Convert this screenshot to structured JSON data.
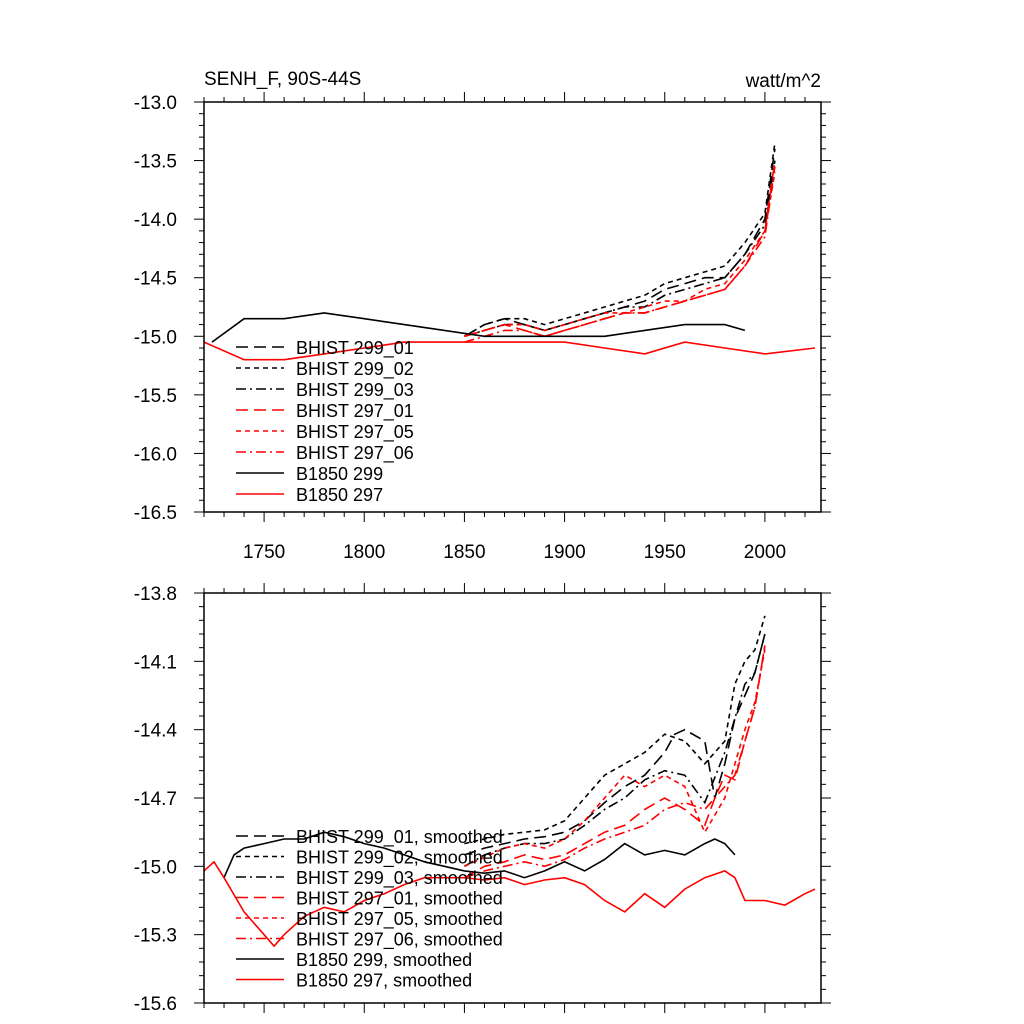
{
  "chart_data": [
    {
      "type": "line",
      "title": "SENH_F, 90S-44S",
      "units": "watt/m^2",
      "xlim": [
        1720,
        2028
      ],
      "ylim": [
        -16.5,
        -13.0
      ],
      "x_ticks": [
        1750,
        1800,
        1850,
        1900,
        1950,
        2000
      ],
      "x_tick_labels": [
        "1750",
        "1800",
        "1850",
        "1900",
        "1950",
        "2000"
      ],
      "y_ticks": [
        -13.0,
        -13.5,
        -14.0,
        -14.5,
        -15.0,
        -15.5,
        -16.0,
        -16.5
      ],
      "y_tick_labels": [
        "-13.0",
        "-13.5",
        "-14.0",
        "-14.5",
        "-15.0",
        "-15.5",
        "-16.0",
        "-16.5"
      ],
      "legend_position": "lower-left",
      "legend": [
        {
          "label": "BHIST 299_01",
          "color": "#000000",
          "dash": "long-dash"
        },
        {
          "label": "BHIST 299_02",
          "color": "#000000",
          "dash": "short-dash"
        },
        {
          "label": "BHIST 299_03",
          "color": "#000000",
          "dash": "dash-dot"
        },
        {
          "label": "BHIST 297_01",
          "color": "#ff0000",
          "dash": "long-dash"
        },
        {
          "label": "BHIST 297_05",
          "color": "#ff0000",
          "dash": "short-dash"
        },
        {
          "label": "BHIST 297_06",
          "color": "#ff0000",
          "dash": "dash-dot"
        },
        {
          "label": "B1850 299",
          "color": "#000000",
          "dash": "solid"
        },
        {
          "label": "B1850 297",
          "color": "#ff0000",
          "dash": "solid"
        }
      ],
      "series": [
        {
          "name": "BHIST 299_01",
          "color": "#000000",
          "dash": "long-dash",
          "x": [
            1850,
            1860,
            1870,
            1880,
            1890,
            1900,
            1910,
            1920,
            1930,
            1940,
            1950,
            1960,
            1970,
            1980,
            1990,
            2000,
            2005
          ],
          "y": [
            -15.0,
            -14.9,
            -14.85,
            -14.9,
            -14.95,
            -14.9,
            -14.85,
            -14.8,
            -14.75,
            -14.7,
            -14.6,
            -14.55,
            -14.5,
            -14.5,
            -14.3,
            -14.0,
            -13.4
          ]
        },
        {
          "name": "BHIST 299_02",
          "color": "#000000",
          "dash": "short-dash",
          "x": [
            1850,
            1860,
            1870,
            1880,
            1890,
            1900,
            1910,
            1920,
            1930,
            1940,
            1950,
            1960,
            1970,
            1980,
            1990,
            2000,
            2005
          ],
          "y": [
            -15.0,
            -14.9,
            -14.85,
            -14.85,
            -14.9,
            -14.85,
            -14.8,
            -14.75,
            -14.7,
            -14.65,
            -14.55,
            -14.5,
            -14.45,
            -14.4,
            -14.2,
            -13.95,
            -13.35
          ]
        },
        {
          "name": "BHIST 299_03",
          "color": "#000000",
          "dash": "dash-dot",
          "x": [
            1850,
            1860,
            1870,
            1880,
            1890,
            1900,
            1910,
            1920,
            1930,
            1940,
            1950,
            1960,
            1970,
            1980,
            1990,
            2000,
            2005
          ],
          "y": [
            -15.0,
            -14.95,
            -14.9,
            -14.9,
            -14.95,
            -14.9,
            -14.85,
            -14.8,
            -14.75,
            -14.75,
            -14.65,
            -14.6,
            -14.55,
            -14.5,
            -14.3,
            -14.05,
            -13.5
          ]
        },
        {
          "name": "BHIST 297_01",
          "color": "#ff0000",
          "dash": "long-dash",
          "x": [
            1850,
            1860,
            1870,
            1880,
            1890,
            1900,
            1910,
            1920,
            1930,
            1940,
            1950,
            1960,
            1970,
            1980,
            1990,
            2000,
            2005
          ],
          "y": [
            -15.0,
            -14.95,
            -14.9,
            -14.95,
            -15.0,
            -14.95,
            -14.9,
            -14.85,
            -14.8,
            -14.8,
            -14.75,
            -14.7,
            -14.65,
            -14.6,
            -14.4,
            -14.1,
            -13.5
          ]
        },
        {
          "name": "BHIST 297_05",
          "color": "#ff0000",
          "dash": "short-dash",
          "x": [
            1850,
            1860,
            1870,
            1880,
            1890,
            1900,
            1910,
            1920,
            1930,
            1940,
            1950,
            1960,
            1970,
            1980,
            1990,
            2000,
            2005
          ],
          "y": [
            -15.0,
            -14.95,
            -14.9,
            -14.9,
            -14.95,
            -14.9,
            -14.85,
            -14.8,
            -14.8,
            -14.75,
            -14.7,
            -14.7,
            -14.6,
            -14.55,
            -14.35,
            -14.1,
            -13.6
          ]
        },
        {
          "name": "BHIST 297_06",
          "color": "#ff0000",
          "dash": "dash-dot",
          "x": [
            1850,
            1860,
            1870,
            1880,
            1890,
            1900,
            1910,
            1920,
            1930,
            1940,
            1950,
            1960,
            1970,
            1980,
            1990,
            2000,
            2005
          ],
          "y": [
            -15.05,
            -15.0,
            -14.95,
            -14.95,
            -15.0,
            -14.95,
            -14.9,
            -14.85,
            -14.8,
            -14.8,
            -14.75,
            -14.7,
            -14.65,
            -14.6,
            -14.4,
            -14.15,
            -13.55
          ]
        },
        {
          "name": "B1850 299",
          "color": "#000000",
          "dash": "solid",
          "x": [
            1724,
            1740,
            1760,
            1780,
            1800,
            1820,
            1840,
            1860,
            1880,
            1900,
            1920,
            1940,
            1960,
            1980,
            1990
          ],
          "y": [
            -15.05,
            -14.85,
            -14.85,
            -14.8,
            -14.85,
            -14.9,
            -14.95,
            -15.0,
            -15.0,
            -15.0,
            -15.0,
            -14.95,
            -14.9,
            -14.9,
            -14.95
          ]
        },
        {
          "name": "B1850 297",
          "color": "#ff0000",
          "dash": "solid",
          "x": [
            1720,
            1740,
            1760,
            1780,
            1800,
            1820,
            1840,
            1860,
            1880,
            1900,
            1920,
            1940,
            1960,
            1980,
            2000,
            2025
          ],
          "y": [
            -15.05,
            -15.2,
            -15.2,
            -15.15,
            -15.1,
            -15.05,
            -15.05,
            -15.05,
            -15.05,
            -15.05,
            -15.1,
            -15.15,
            -15.05,
            -15.1,
            -15.15,
            -15.1
          ]
        }
      ]
    },
    {
      "type": "line",
      "title": "",
      "xlim": [
        1720,
        2028
      ],
      "ylim": [
        -15.6,
        -13.8
      ],
      "x_ticks": [
        1750,
        1800,
        1850,
        1900,
        1950,
        2000
      ],
      "x_tick_labels": [
        "",
        "",
        "",
        "",
        "",
        ""
      ],
      "y_ticks": [
        -13.8,
        -14.1,
        -14.4,
        -14.7,
        -15.0,
        -15.3,
        -15.6
      ],
      "y_tick_labels": [
        "-13.8",
        "-14.1",
        "-14.4",
        "-14.7",
        "-15.0",
        "-15.3",
        "-15.6"
      ],
      "legend_position": "lower-left",
      "legend": [
        {
          "label": "BHIST 299_01, smoothed",
          "color": "#000000",
          "dash": "long-dash"
        },
        {
          "label": "BHIST 299_02, smoothed",
          "color": "#000000",
          "dash": "short-dash"
        },
        {
          "label": "BHIST 299_03, smoothed",
          "color": "#000000",
          "dash": "dash-dot"
        },
        {
          "label": "BHIST 297_01, smoothed",
          "color": "#ff0000",
          "dash": "long-dash"
        },
        {
          "label": "BHIST 297_05, smoothed",
          "color": "#ff0000",
          "dash": "short-dash"
        },
        {
          "label": "BHIST 297_06, smoothed",
          "color": "#ff0000",
          "dash": "dash-dot"
        },
        {
          "label": "B1850 299, smoothed",
          "color": "#000000",
          "dash": "solid"
        },
        {
          "label": "B1850 297, smoothed",
          "color": "#ff0000",
          "dash": "solid"
        }
      ],
      "series": [
        {
          "name": "BHIST 299_01, smoothed",
          "color": "#000000",
          "dash": "long-dash",
          "x": [
            1850,
            1860,
            1870,
            1880,
            1890,
            1900,
            1910,
            1920,
            1930,
            1940,
            1950,
            1955,
            1960,
            1970,
            1975,
            1980,
            1985,
            1990,
            1995,
            2000
          ],
          "y": [
            -14.95,
            -14.92,
            -14.9,
            -14.88,
            -14.87,
            -14.85,
            -14.8,
            -14.72,
            -14.65,
            -14.6,
            -14.5,
            -14.42,
            -14.4,
            -14.45,
            -14.7,
            -14.55,
            -14.35,
            -14.25,
            -14.15,
            -13.98
          ]
        },
        {
          "name": "BHIST 299_02, smoothed",
          "color": "#000000",
          "dash": "short-dash",
          "x": [
            1850,
            1860,
            1870,
            1880,
            1890,
            1900,
            1910,
            1920,
            1930,
            1940,
            1950,
            1960,
            1970,
            1980,
            1985,
            1990,
            1995,
            2000
          ],
          "y": [
            -14.9,
            -14.88,
            -14.86,
            -14.85,
            -14.84,
            -14.8,
            -14.7,
            -14.6,
            -14.55,
            -14.5,
            -14.42,
            -14.45,
            -14.55,
            -14.45,
            -14.2,
            -14.1,
            -14.05,
            -13.9
          ]
        },
        {
          "name": "BHIST 299_03, smoothed",
          "color": "#000000",
          "dash": "dash-dot",
          "x": [
            1850,
            1860,
            1870,
            1880,
            1890,
            1900,
            1910,
            1920,
            1930,
            1940,
            1950,
            1960,
            1970,
            1980,
            1985,
            1990,
            1995,
            2000
          ],
          "y": [
            -15.0,
            -14.95,
            -14.92,
            -14.9,
            -14.9,
            -14.88,
            -14.82,
            -14.75,
            -14.7,
            -14.62,
            -14.58,
            -14.6,
            -14.72,
            -14.5,
            -14.35,
            -14.2,
            -14.15,
            -13.98
          ]
        },
        {
          "name": "BHIST 297_01, smoothed",
          "color": "#ff0000",
          "dash": "long-dash",
          "x": [
            1850,
            1860,
            1870,
            1880,
            1890,
            1900,
            1910,
            1920,
            1930,
            1940,
            1950,
            1960,
            1970,
            1975,
            1980,
            1985,
            1990,
            1995,
            2000
          ],
          "y": [
            -15.05,
            -15.0,
            -14.98,
            -14.95,
            -14.97,
            -14.95,
            -14.9,
            -14.85,
            -14.82,
            -14.75,
            -14.7,
            -14.75,
            -14.82,
            -14.7,
            -14.6,
            -14.62,
            -14.45,
            -14.3,
            -14.03
          ]
        },
        {
          "name": "BHIST 297_05, smoothed",
          "color": "#ff0000",
          "dash": "short-dash",
          "x": [
            1850,
            1860,
            1870,
            1880,
            1890,
            1900,
            1910,
            1920,
            1930,
            1940,
            1950,
            1960,
            1970,
            1980,
            1985,
            1990,
            1995,
            2000
          ],
          "y": [
            -15.0,
            -14.96,
            -14.92,
            -14.9,
            -14.92,
            -14.88,
            -14.8,
            -14.7,
            -14.6,
            -14.65,
            -14.6,
            -14.65,
            -14.85,
            -14.7,
            -14.55,
            -14.4,
            -14.28,
            -14.05
          ]
        },
        {
          "name": "BHIST 297_06, smoothed",
          "color": "#ff0000",
          "dash": "dash-dot",
          "x": [
            1850,
            1860,
            1870,
            1880,
            1890,
            1900,
            1910,
            1920,
            1930,
            1940,
            1950,
            1960,
            1970,
            1980,
            1985,
            1990,
            1995,
            2000
          ],
          "y": [
            -15.05,
            -15.02,
            -15.0,
            -14.98,
            -15.0,
            -14.97,
            -14.92,
            -14.88,
            -14.85,
            -14.82,
            -14.75,
            -14.72,
            -14.75,
            -14.65,
            -14.6,
            -14.45,
            -14.3,
            -14.03
          ]
        },
        {
          "name": "B1850 299, smoothed",
          "color": "#000000",
          "dash": "solid",
          "x": [
            1730,
            1735,
            1740,
            1750,
            1760,
            1770,
            1780,
            1790,
            1800,
            1810,
            1820,
            1830,
            1840,
            1850,
            1860,
            1870,
            1880,
            1890,
            1900,
            1910,
            1920,
            1930,
            1940,
            1950,
            1960,
            1970,
            1975,
            1980,
            1985
          ],
          "y": [
            -15.05,
            -14.95,
            -14.92,
            -14.9,
            -14.88,
            -14.88,
            -14.85,
            -14.87,
            -14.9,
            -14.92,
            -14.95,
            -14.98,
            -15.0,
            -15.02,
            -15.03,
            -15.02,
            -15.05,
            -15.02,
            -14.98,
            -15.02,
            -14.97,
            -14.9,
            -14.95,
            -14.93,
            -14.95,
            -14.9,
            -14.88,
            -14.9,
            -14.95
          ]
        },
        {
          "name": "B1850 297, smoothed",
          "color": "#ff0000",
          "dash": "solid",
          "x": [
            1720,
            1725,
            1730,
            1740,
            1750,
            1755,
            1760,
            1770,
            1780,
            1790,
            1800,
            1810,
            1820,
            1830,
            1840,
            1850,
            1860,
            1870,
            1880,
            1890,
            1900,
            1910,
            1920,
            1930,
            1940,
            1950,
            1960,
            1970,
            1980,
            1985,
            1990,
            2000,
            2010,
            2020,
            2025
          ],
          "y": [
            -15.02,
            -14.98,
            -15.05,
            -15.2,
            -15.3,
            -15.35,
            -15.3,
            -15.22,
            -15.18,
            -15.2,
            -15.15,
            -15.12,
            -15.08,
            -15.05,
            -15.05,
            -15.05,
            -15.06,
            -15.05,
            -15.08,
            -15.06,
            -15.05,
            -15.08,
            -15.15,
            -15.2,
            -15.12,
            -15.18,
            -15.1,
            -15.05,
            -15.02,
            -15.05,
            -15.15,
            -15.15,
            -15.17,
            -15.12,
            -15.1
          ]
        }
      ]
    }
  ]
}
